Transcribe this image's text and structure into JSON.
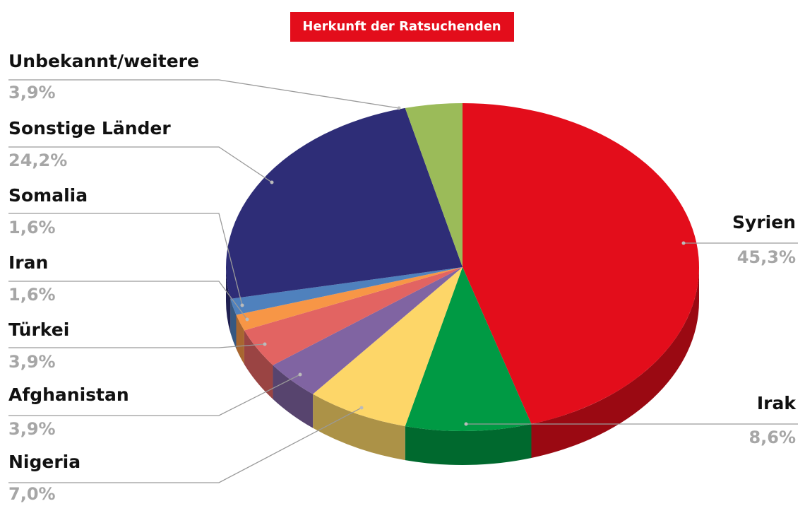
{
  "chart_data": {
    "type": "pie",
    "title": "Herkunft der Ratsuchenden",
    "categories": [
      "Syrien",
      "Irak",
      "Nigeria",
      "Afghanistan",
      "Türkei",
      "Iran",
      "Somalia",
      "Sonstige Länder",
      "Unbekannt/weitere"
    ],
    "values": [
      45.3,
      8.6,
      7.0,
      3.9,
      3.9,
      1.6,
      1.6,
      24.2,
      3.9
    ],
    "value_labels": [
      "45,3%",
      "8,6%",
      "7,0%",
      "3,9%",
      "3,9%",
      "1,6%",
      "1,6%",
      "24,2%",
      "3,9%"
    ],
    "colors": [
      "#e30d1b",
      "#009a44",
      "#fdd668",
      "#8064a2",
      "#e26462",
      "#f79646",
      "#4f81bd",
      "#2e2d77",
      "#9bbb59"
    ]
  }
}
